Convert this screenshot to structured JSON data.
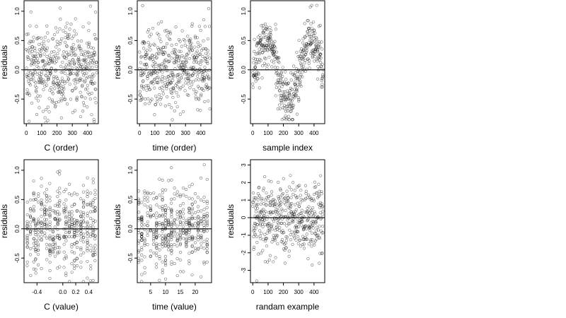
{
  "chart_data": [
    {
      "type": "scatter",
      "xlabel": "C (order)",
      "ylabel": "residuals",
      "xlim": [
        -15,
        470
      ],
      "ylim": [
        -0.92,
        1.18
      ],
      "xticks": [
        0,
        100,
        200,
        300,
        400
      ],
      "xtick_labels": [
        "0",
        "100",
        "200",
        "300",
        "400"
      ],
      "yticks": [
        -0.5,
        0,
        0.5,
        1
      ],
      "ytick_labels": [
        "-0.5",
        "0.0",
        "0.5",
        "1.0"
      ],
      "hline": 0,
      "n_points": 460,
      "pattern": "uniform",
      "spread": [
        -0.9,
        1.15
      ]
    },
    {
      "type": "scatter",
      "xlabel": "time (order)",
      "ylabel": "residuals",
      "xlim": [
        -15,
        470
      ],
      "ylim": [
        -0.92,
        1.18
      ],
      "xticks": [
        0,
        100,
        200,
        300,
        400
      ],
      "xtick_labels": [
        "0",
        "100",
        "200",
        "300",
        "400"
      ],
      "yticks": [
        -0.5,
        0,
        0.5,
        1
      ],
      "ytick_labels": [
        "-0.5",
        "0.0",
        "0.5",
        "1.0"
      ],
      "hline": 0,
      "n_points": 460,
      "pattern": "uniform",
      "spread": [
        -0.9,
        1.15
      ]
    },
    {
      "type": "scatter",
      "xlabel": "sample index",
      "ylabel": "residuals",
      "xlim": [
        -15,
        470
      ],
      "ylim": [
        -0.92,
        1.18
      ],
      "xticks": [
        0,
        100,
        200,
        300,
        400
      ],
      "xtick_labels": [
        "0",
        "100",
        "200",
        "300",
        "400"
      ],
      "yticks": [
        -0.5,
        0,
        0.5,
        1
      ],
      "ytick_labels": [
        "-0.5",
        "0.0",
        "0.5",
        "1.0"
      ],
      "hline": 0,
      "n_points": 460,
      "pattern": "wave",
      "spread": [
        -0.85,
        1.1
      ]
    },
    {
      "type": "scatter",
      "xlabel": "C (value)",
      "ylabel": "residuals",
      "xlim": [
        -0.6,
        0.55
      ],
      "ylim": [
        -0.92,
        1.18
      ],
      "xticks": [
        -0.4,
        0,
        0.2,
        0.4
      ],
      "xtick_labels": [
        "-0.4",
        "0.0",
        "0.2",
        "0.4"
      ],
      "yticks": [
        -0.5,
        0,
        0.5,
        1
      ],
      "ytick_labels": [
        "-0.5",
        "0.0",
        "0.5",
        "1.0"
      ],
      "hline": 0,
      "n_points": 460,
      "pattern": "columns",
      "columns": [
        -0.55,
        -0.5,
        -0.45,
        -0.42,
        -0.38,
        -0.33,
        -0.28,
        -0.25,
        -0.2,
        -0.15,
        -0.12,
        -0.08,
        -0.05,
        0.02,
        0.05,
        0.1,
        0.14,
        0.18,
        0.22,
        0.28,
        0.32,
        0.38,
        0.43,
        0.47,
        0.5
      ],
      "spread": [
        -0.9,
        1.15
      ]
    },
    {
      "type": "scatter",
      "xlabel": "time (value)",
      "ylabel": "residuals",
      "xlim": [
        0.5,
        25.5
      ],
      "ylim": [
        -0.92,
        1.18
      ],
      "xticks": [
        5,
        10,
        15,
        20
      ],
      "xtick_labels": [
        "5",
        "10",
        "15",
        "20"
      ],
      "yticks": [
        -0.5,
        0,
        0.5,
        1
      ],
      "ytick_labels": [
        "-0.5",
        "0.0",
        "0.5",
        "1.0"
      ],
      "hline": 0,
      "n_points": 460,
      "pattern": "columns",
      "columns": [
        1,
        2,
        3,
        4,
        5,
        6,
        7,
        8,
        9,
        10,
        11,
        12,
        13,
        14,
        15,
        16,
        17,
        18,
        19,
        20,
        21,
        22,
        23,
        24
      ],
      "spread": [
        -0.9,
        1.15
      ]
    },
    {
      "type": "scatter",
      "xlabel": "randam example",
      "ylabel": "residuals",
      "xlim": [
        -15,
        470
      ],
      "ylim": [
        -3.7,
        3.3
      ],
      "xticks": [
        0,
        100,
        200,
        300,
        400
      ],
      "xtick_labels": [
        "0",
        "100",
        "200",
        "300",
        "400"
      ],
      "yticks": [
        -3,
        -2,
        -1,
        0,
        1,
        2,
        3
      ],
      "ytick_labels": [
        "-3",
        "-2",
        "-1",
        "0",
        "1",
        "2",
        "3"
      ],
      "hline": 0,
      "n_points": 460,
      "pattern": "normal",
      "spread": [
        -3.6,
        3.1
      ]
    }
  ]
}
